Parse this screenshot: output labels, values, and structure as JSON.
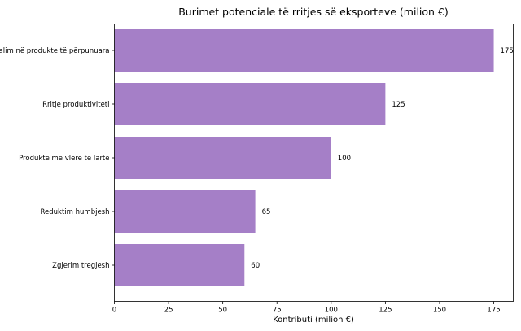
{
  "chart_data": {
    "type": "bar",
    "orientation": "horizontal",
    "title": "Burimet potenciale të rritjes së eksporteve (milion €)",
    "xlabel": "Kontributi (milion €)",
    "ylabel": "",
    "categories": [
      "Kalim në produkte të përpunuara",
      "Rritje produktiviteti",
      "Produkte me vlerë të lartë",
      "Reduktim humbjesh",
      "Zgjerim tregjesh"
    ],
    "values": [
      175,
      125,
      100,
      65,
      60
    ],
    "value_labels": [
      "175",
      "125",
      "100",
      "65",
      "60"
    ],
    "xlim": [
      0,
      184
    ],
    "xticks": [
      0,
      25,
      50,
      75,
      100,
      125,
      150,
      175
    ],
    "xtick_labels": [
      "0",
      "25",
      "50",
      "75",
      "100",
      "125",
      "150",
      "175"
    ],
    "bar_color": "#a57fc7",
    "grid": false,
    "legend": "none"
  }
}
